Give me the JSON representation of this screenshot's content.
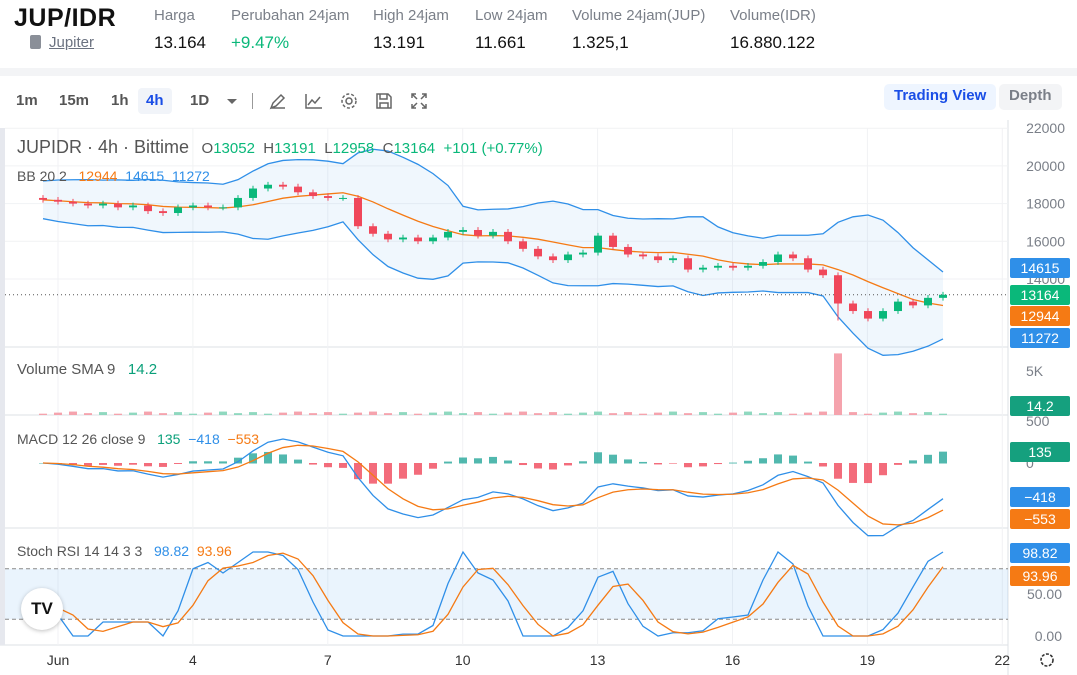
{
  "header": {
    "symbol": "JUP/IDR",
    "project_link": "Jupiter",
    "stats": [
      {
        "label": "Harga",
        "value": "13.164"
      },
      {
        "label": "Perubahan 24jam",
        "value": "+9.47%"
      },
      {
        "label": "High 24jam",
        "value": "13.191"
      },
      {
        "label": "Low 24jam",
        "value": "11.661"
      },
      {
        "label": "Volume 24jam(JUP)",
        "value": "1.325,1"
      },
      {
        "label": "Volume(IDR)",
        "value": "16.880.122"
      }
    ]
  },
  "toolbar": {
    "intervals": [
      "1m",
      "15m",
      "1h",
      "4h",
      "1D"
    ],
    "active_interval": "4h",
    "icons": [
      "chevron-down-icon",
      "draw-icon",
      "indicator-icon",
      "settings-icon",
      "save-icon",
      "fullscreen-icon"
    ],
    "views": [
      "Trading View",
      "Depth"
    ],
    "active_view": "Trading View"
  },
  "legend": {
    "title": "JUPIDR · 4h · Bittime",
    "o_label": "O",
    "o": "13052",
    "h_label": "H",
    "h": "13191",
    "l_label": "L",
    "l": "12958",
    "c_label": "C",
    "c": "13164",
    "change": "+101 (+0.77%)",
    "bb": {
      "label": "BB 20 2",
      "mid": "12944",
      "upper": "14615",
      "lower": "11272"
    },
    "volume": {
      "label": "Volume SMA 9",
      "value": "14.2"
    },
    "macd": {
      "label": "MACD 12 26 close 9",
      "hist": "135",
      "macd": "−418",
      "signal": "−553"
    },
    "stoch": {
      "label": "Stoch RSI 14 14 3 3",
      "k": "98.82",
      "d": "93.96"
    }
  },
  "price_tags": {
    "upper": "14615",
    "last": "13164",
    "mid": "12944",
    "lower": "11272",
    "volume": "14.2",
    "macd_hist": "135",
    "macd": "−418",
    "signal": "−553",
    "k": "98.82",
    "d": "93.96"
  },
  "colors": {
    "up": "#0ab87a",
    "down": "#f0475a",
    "orange": "#f57a14",
    "blue": "#2f8fe8",
    "accent": "#1a4ee6"
  },
  "chart_data": {
    "type": "candlestick",
    "interval_shown": "4h",
    "price_axis": {
      "ticks": [
        "22000",
        "20000",
        "18000",
        "16000",
        "14000"
      ],
      "range": [
        11000,
        22500
      ]
    },
    "volume_axis": {
      "ticks": [
        "5K"
      ]
    },
    "macd_axis": {
      "ticks": [
        "500",
        "0"
      ]
    },
    "stoch_axis": {
      "ticks": [
        "50.00",
        "0.00"
      ],
      "range": [
        0,
        100
      ]
    },
    "x_ticks": [
      "Jun",
      "4",
      "7",
      "10",
      "13",
      "16",
      "19",
      "22"
    ],
    "series": [
      [
        "05-31 16:00",
        18200
      ],
      [
        "06-01 00:00",
        18100
      ],
      [
        "06-01 08:00",
        18000
      ],
      [
        "06-01 16:00",
        17900
      ],
      [
        "06-02 00:00",
        18000
      ],
      [
        "06-02 08:00",
        17800
      ],
      [
        "06-02 16:00",
        17900
      ],
      [
        "06-03 00:00",
        17600
      ],
      [
        "06-03 08:00",
        17500
      ],
      [
        "06-03 16:00",
        17800
      ],
      [
        "06-04 00:00",
        17900
      ],
      [
        "06-04 08:00",
        17800
      ],
      [
        "06-04 16:00",
        17800
      ],
      [
        "06-05 00:00",
        18300
      ],
      [
        "06-05 08:00",
        18800
      ],
      [
        "06-05 16:00",
        19000
      ],
      [
        "06-06 00:00",
        18900
      ],
      [
        "06-06 08:00",
        18600
      ],
      [
        "06-06 16:00",
        18400
      ],
      [
        "06-07 00:00",
        18300
      ],
      [
        "06-07 08:00",
        18300
      ],
      [
        "06-07 16:00",
        16800
      ],
      [
        "06-08 00:00",
        16400
      ],
      [
        "06-08 08:00",
        16100
      ],
      [
        "06-08 16:00",
        16200
      ],
      [
        "06-09 00:00",
        16000
      ],
      [
        "06-09 08:00",
        16200
      ],
      [
        "06-09 16:00",
        16500
      ],
      [
        "06-10 00:00",
        16600
      ],
      [
        "06-10 08:00",
        16300
      ],
      [
        "06-10 16:00",
        16500
      ],
      [
        "06-11 00:00",
        16000
      ],
      [
        "06-11 08:00",
        15600
      ],
      [
        "06-11 16:00",
        15200
      ],
      [
        "06-12 00:00",
        15000
      ],
      [
        "06-12 08:00",
        15300
      ],
      [
        "06-12 16:00",
        15400
      ],
      [
        "06-13 00:00",
        16300
      ],
      [
        "06-13 08:00",
        15700
      ],
      [
        "06-13 16:00",
        15300
      ],
      [
        "06-14 00:00",
        15200
      ],
      [
        "06-14 08:00",
        15000
      ],
      [
        "06-14 16:00",
        15100
      ],
      [
        "06-15 00:00",
        14500
      ],
      [
        "06-15 08:00",
        14600
      ],
      [
        "06-15 16:00",
        14700
      ],
      [
        "06-16 00:00",
        14600
      ],
      [
        "06-16 08:00",
        14700
      ],
      [
        "06-16 16:00",
        14900
      ],
      [
        "06-17 00:00",
        15300
      ],
      [
        "06-17 08:00",
        15100
      ],
      [
        "06-17 16:00",
        14500
      ],
      [
        "06-18 00:00",
        14200
      ],
      [
        "06-18 08:00",
        12700
      ],
      [
        "06-18 16:00",
        12300
      ],
      [
        "06-19 00:00",
        11900
      ],
      [
        "06-19 08:00",
        12300
      ],
      [
        "06-19 16:00",
        12800
      ],
      [
        "06-20 00:00",
        12600
      ],
      [
        "06-20 08:00",
        13000
      ],
      [
        "06-20 16:00",
        13164
      ]
    ],
    "volume_spike": {
      "time": "06-18 08:00",
      "value": 7000
    }
  }
}
